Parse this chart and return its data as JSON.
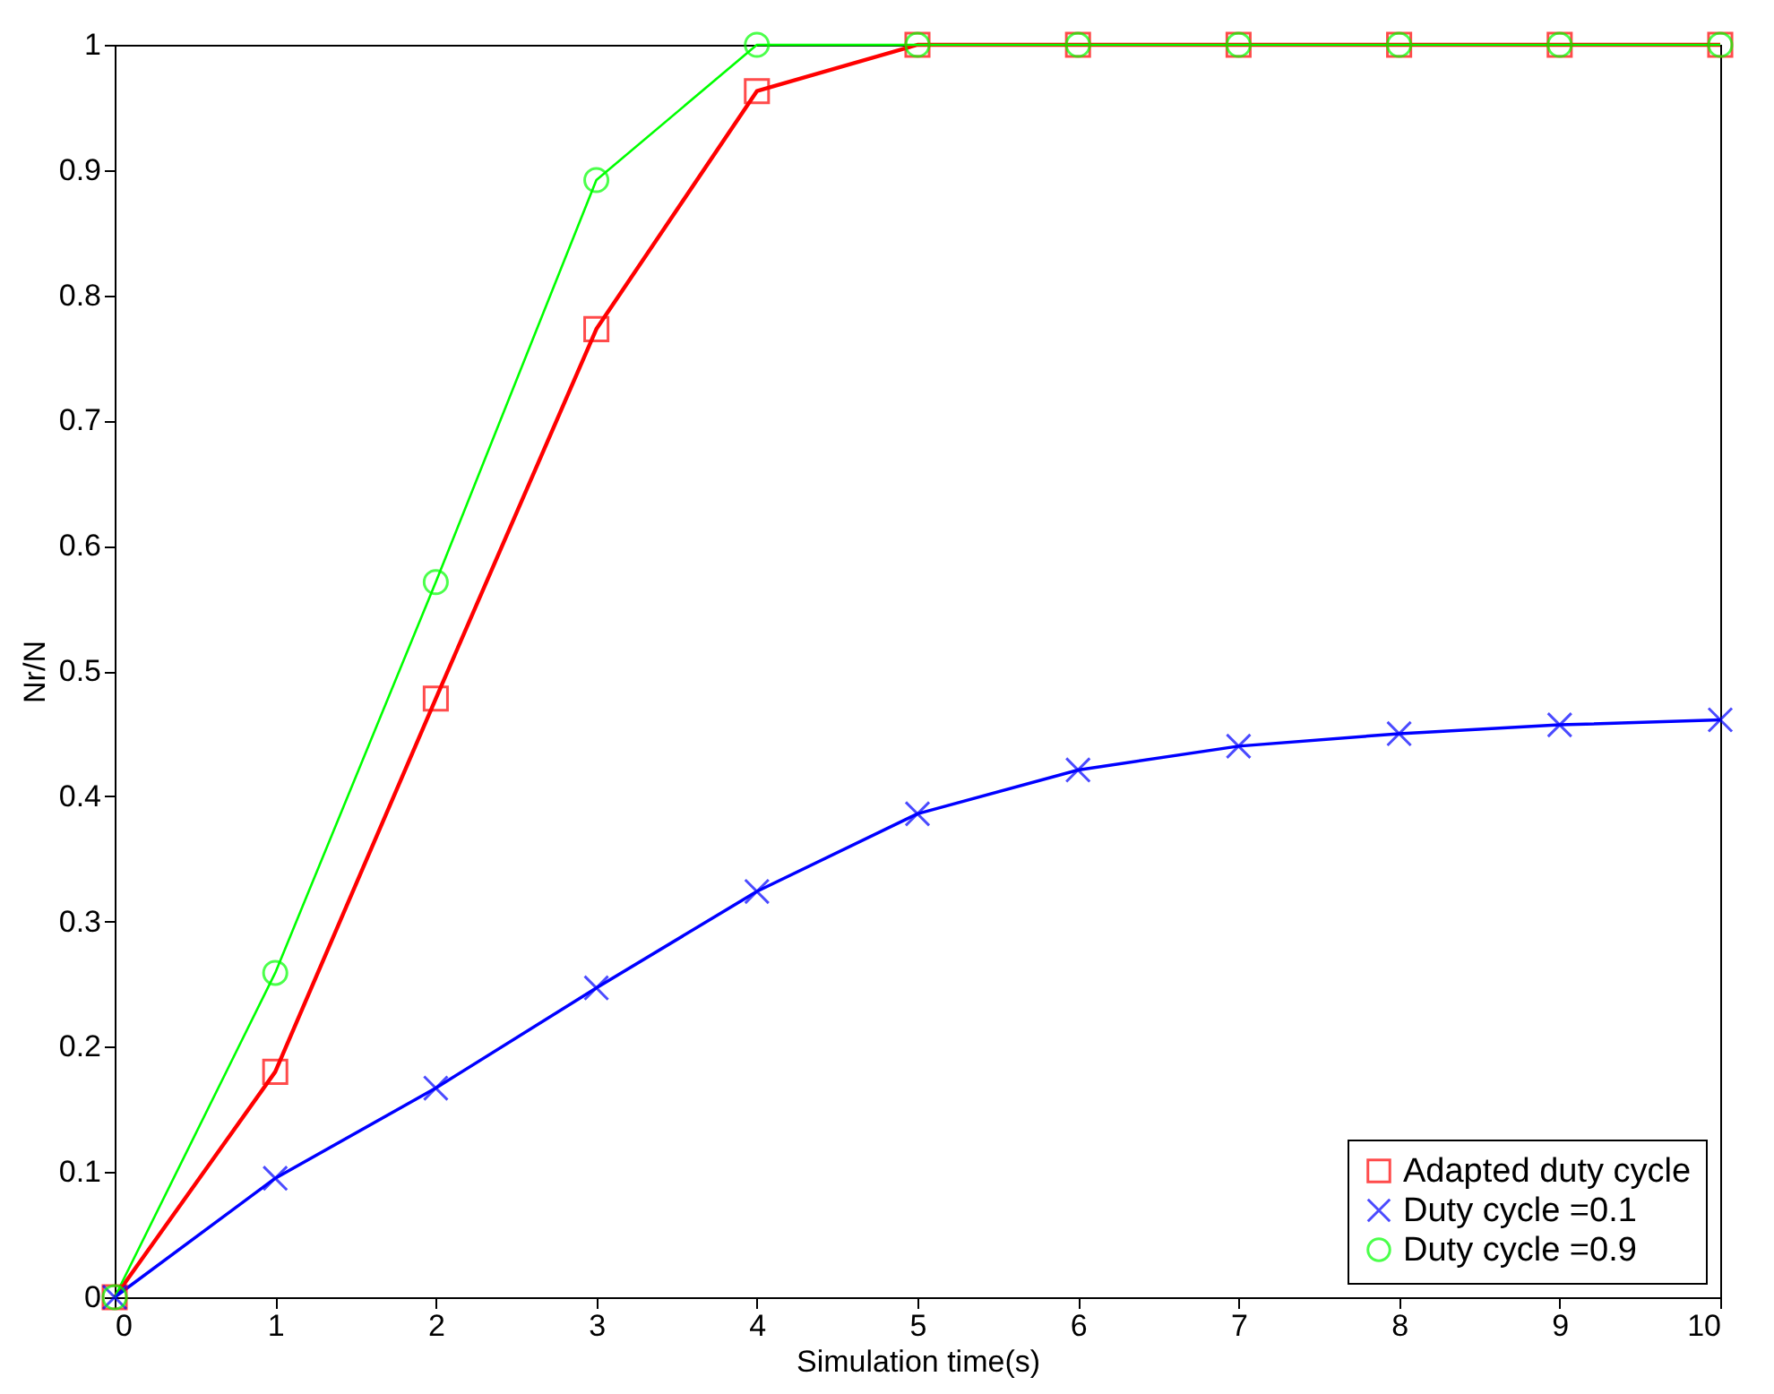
{
  "chart_data": {
    "type": "line",
    "xlabel": "Simulation time(s)",
    "ylabel": "Nr/N",
    "x": [
      0,
      1,
      2,
      3,
      4,
      5,
      6,
      7,
      8,
      9,
      10
    ],
    "series": [
      {
        "name": "Adapted duty cycle",
        "color": "#ff0000",
        "marker": "square",
        "values": [
          0,
          0.18,
          0.478,
          0.773,
          0.963,
          1,
          1,
          1,
          1,
          1,
          1
        ]
      },
      {
        "name": "Duty cycle =0.1",
        "color": "#0000ff",
        "marker": "cross",
        "values": [
          0,
          0.095,
          0.167,
          0.247,
          0.324,
          0.386,
          0.421,
          0.44,
          0.45,
          0.457,
          0.461
        ]
      },
      {
        "name": "Duty cycle =0.9",
        "color": "#00ff00",
        "marker": "circle",
        "values": [
          0,
          0.259,
          0.571,
          0.892,
          1,
          1,
          1,
          1,
          1,
          1,
          1
        ]
      }
    ],
    "xlim": [
      0,
      10
    ],
    "xticks": [
      0,
      1,
      2,
      3,
      4,
      5,
      6,
      7,
      8,
      9,
      10
    ],
    "ylim": [
      0,
      1
    ],
    "yticks": [
      0,
      0.1,
      0.2,
      0.3,
      0.4,
      0.5,
      0.6,
      0.7,
      0.8,
      0.9,
      1
    ],
    "grid": false,
    "legend": "bottom right"
  }
}
